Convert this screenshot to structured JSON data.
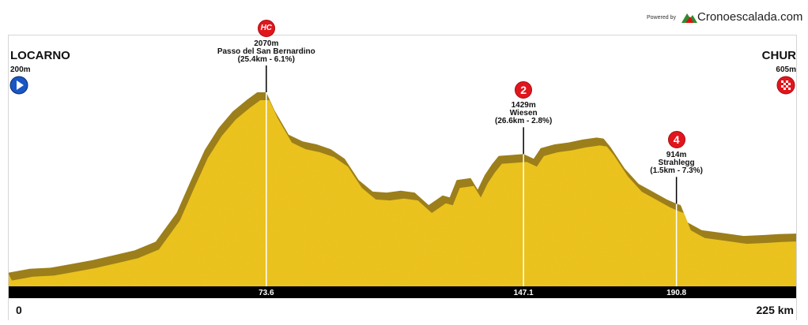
{
  "header": {
    "powered_by": "Powered by",
    "brand": "Cronoescalada.com"
  },
  "start": {
    "name": "LOCARNO",
    "elevation": "200m",
    "icon": "play-icon",
    "distance_label": "0"
  },
  "finish": {
    "name": "CHUR",
    "elevation": "605m",
    "icon": "checkered-flag-icon",
    "distance_label": "225 km"
  },
  "climbs": [
    {
      "category": "HC",
      "elevation": "2070m",
      "name": "Passo del San Bernardino",
      "stats": "(25.4km - 6.1%)",
      "km": 73.6,
      "km_label": "73.6"
    },
    {
      "category": "2",
      "elevation": "1429m",
      "name": "Wiesen",
      "stats": "(26.6km - 2.8%)",
      "km": 147.1,
      "km_label": "147.1"
    },
    {
      "category": "4",
      "elevation": "914m",
      "name": "Strahlegg",
      "stats": "(1.5km - 7.3%)",
      "km": 190.8,
      "km_label": "190.8"
    }
  ],
  "colors": {
    "fill": "#f0c419",
    "shadow": "#9c7f1a",
    "axis": "#000000",
    "badge": "#e1161d",
    "start_icon": "#1a56c4"
  },
  "chart_data": {
    "type": "area",
    "x_unit": "km",
    "y_unit": "m",
    "xlim": [
      0,
      225
    ],
    "x": [
      0,
      6,
      12,
      18,
      24,
      30,
      36,
      42,
      48,
      52,
      56,
      60,
      64,
      68,
      71,
      73.6,
      76,
      80,
      84,
      88,
      92,
      96,
      100,
      104,
      108,
      112,
      116,
      120,
      124,
      126,
      128,
      132,
      134,
      136,
      138,
      140,
      144,
      147.1,
      150,
      152,
      154,
      156,
      160,
      164,
      168,
      170,
      172,
      176,
      180,
      184,
      188,
      190.8,
      192,
      194,
      198,
      204,
      210,
      216,
      220,
      225
    ],
    "y": [
      200,
      240,
      250,
      290,
      330,
      380,
      430,
      520,
      820,
      1150,
      1470,
      1700,
      1870,
      1990,
      2070,
      2070,
      1880,
      1630,
      1560,
      1530,
      1480,
      1380,
      1160,
      1040,
      1030,
      1050,
      1030,
      900,
      1000,
      980,
      1160,
      1180,
      1060,
      1210,
      1320,
      1410,
      1420,
      1429,
      1380,
      1490,
      1510,
      1530,
      1550,
      1580,
      1600,
      1590,
      1500,
      1280,
      1120,
      1040,
      960,
      914,
      900,
      720,
      640,
      610,
      580,
      590,
      600,
      605
    ]
  }
}
